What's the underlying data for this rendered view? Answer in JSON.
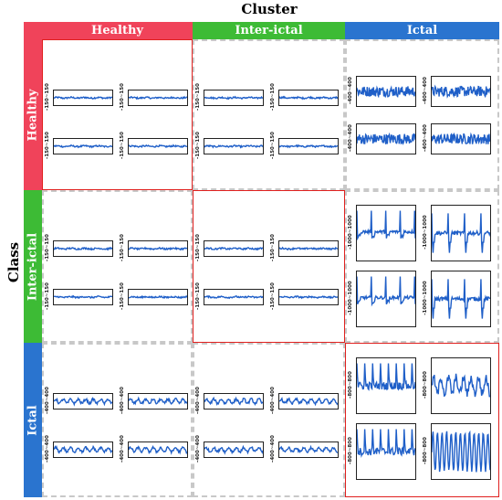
{
  "titles": {
    "cluster": "Cluster",
    "class": "Class"
  },
  "columns": [
    {
      "label": "Healthy",
      "color": "#f0435a"
    },
    {
      "label": "Inter-ictal",
      "color": "#3dbb35"
    },
    {
      "label": "Ictal",
      "color": "#2a74cf"
    }
  ],
  "rows": [
    {
      "label": "Healthy",
      "color": "#f0435a"
    },
    {
      "label": "Inter-ictal",
      "color": "#3dbb35"
    },
    {
      "label": "Ictal",
      "color": "#2a74cf"
    }
  ],
  "y_ranges": [
    [
      "-150~150",
      "-150~150",
      "-400~400"
    ],
    [
      "-150~150",
      "-150~150",
      "-1000~1000"
    ],
    [
      "-400~400",
      "-400~400",
      "-800~800"
    ]
  ],
  "signal_color": "#1f5fc8",
  "highlight_color": "#e0201e"
}
